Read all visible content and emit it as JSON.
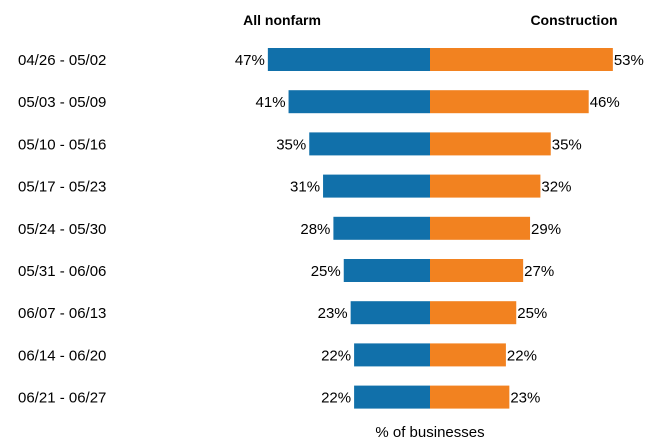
{
  "chart_data": {
    "type": "bar",
    "orientation": "horizontal",
    "layout": "back-to-back",
    "categories": [
      "04/26 - 05/02",
      "05/03 - 05/09",
      "05/10 - 05/16",
      "05/17 - 05/23",
      "05/24 - 05/30",
      "05/31 - 06/06",
      "06/07 - 06/13",
      "06/14 - 06/20",
      "06/21 - 06/27"
    ],
    "series": [
      {
        "name": "All nonfarm",
        "side": "left",
        "color": "#1170aa",
        "values": [
          47,
          41,
          35,
          31,
          28,
          25,
          23,
          22,
          22
        ]
      },
      {
        "name": "Construction",
        "side": "right",
        "color": "#f28220",
        "values": [
          53,
          46,
          35,
          32,
          29,
          27,
          25,
          22,
          23
        ]
      }
    ],
    "value_suffix": "%",
    "xlabel": "% of businesses",
    "grid": false,
    "legend": "column headers above bars"
  }
}
